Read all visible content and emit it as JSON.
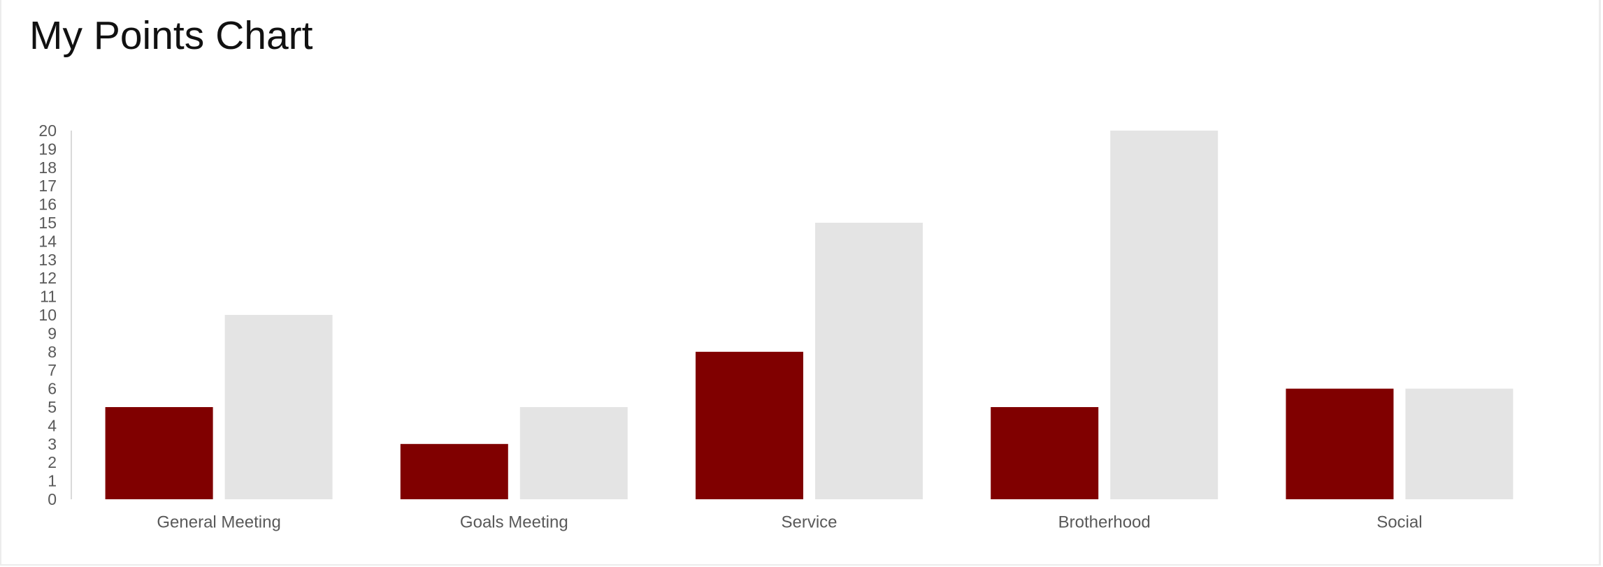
{
  "chart_data": {
    "type": "bar",
    "title": "My Points Chart",
    "xlabel": "",
    "ylabel": "",
    "categories": [
      "General Meeting",
      "Goals Meeting",
      "Service",
      "Brotherhood",
      "Social"
    ],
    "series": [
      {
        "values": [
          5,
          3,
          8,
          5,
          6
        ],
        "color": "#800000"
      },
      {
        "values": [
          10,
          5,
          15,
          20,
          6
        ],
        "color": "#e4e4e4"
      }
    ],
    "ylim": [
      0,
      20
    ],
    "yticks": [
      0,
      1,
      2,
      3,
      4,
      5,
      6,
      7,
      8,
      9,
      10,
      11,
      12,
      13,
      14,
      15,
      16,
      17,
      18,
      19,
      20
    ],
    "grid": false,
    "legend": "none",
    "colors": {
      "tick_text": "#595959",
      "axis_line": "#d9d9d9",
      "title_text": "#111111"
    }
  }
}
